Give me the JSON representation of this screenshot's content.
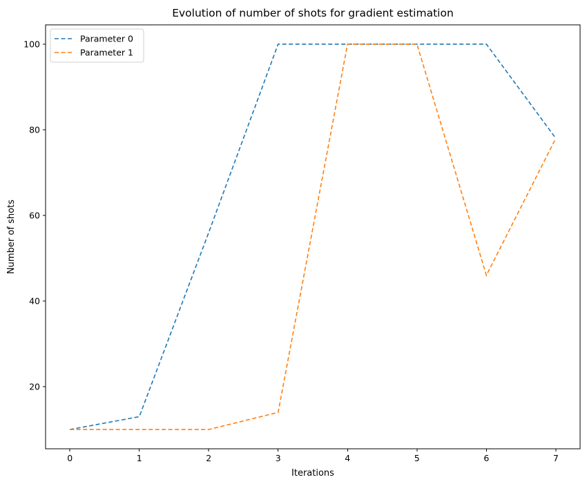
{
  "chart_data": {
    "type": "line",
    "title": "Evolution of number of shots for gradient estimation",
    "xlabel": "Iterations",
    "ylabel": "Number of shots",
    "x": [
      0,
      1,
      2,
      3,
      4,
      5,
      6,
      7
    ],
    "xlim": [
      -0.35,
      7.35
    ],
    "ylim": [
      5.5,
      104.5
    ],
    "xticks": [
      0,
      1,
      2,
      3,
      4,
      5,
      6,
      7
    ],
    "yticks": [
      20,
      40,
      60,
      80,
      100
    ],
    "legend_position": "upper-left",
    "grid": false,
    "series": [
      {
        "name": "Parameter 0",
        "color": "#1f77b4",
        "linestyle": "dashed",
        "values": [
          10,
          13,
          56,
          100,
          100,
          100,
          100,
          78
        ]
      },
      {
        "name": "Parameter 1",
        "color": "#ff7f0e",
        "linestyle": "dashed",
        "values": [
          10,
          10,
          10,
          14,
          100,
          100,
          46,
          78
        ]
      }
    ]
  }
}
